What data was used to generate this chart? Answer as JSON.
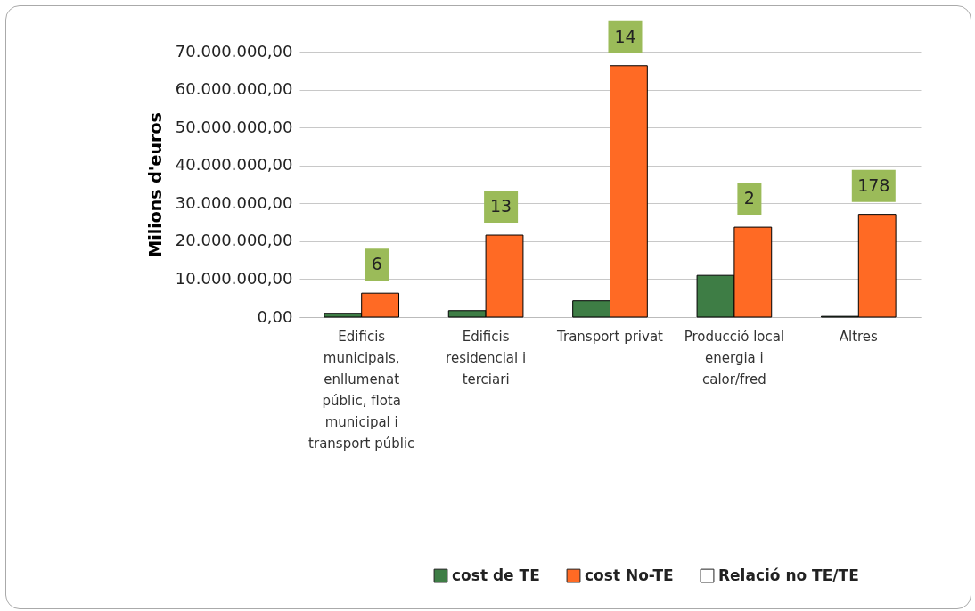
{
  "chart_data": {
    "type": "bar",
    "ylabel": "Milions d'euros",
    "categories": [
      "Edificis municipals, enllumenat públic, flota municipal i transport públic",
      "Edificis residencial i terciari",
      "Transport privat",
      "Producció local energia i calor/fred",
      "Altres"
    ],
    "series": [
      {
        "name": "cost de TE",
        "color": "#3e7d45",
        "values": [
          1000000,
          1700000,
          4300000,
          11000000,
          200000
        ]
      },
      {
        "name": "cost No-TE",
        "color": "#ff6a24",
        "values": [
          6300000,
          21600000,
          66300000,
          23700000,
          27100000
        ]
      },
      {
        "name": "Relació no TE/TE",
        "values": [
          null,
          null,
          null,
          null,
          null
        ]
      }
    ],
    "annotations": [
      {
        "text": "6",
        "x": "Edificis municipals, enllumenat públic, flota municipal i transport públic",
        "y": 6300000
      },
      {
        "text": "13",
        "x": "Edificis residencial i terciari",
        "y": 21600000
      },
      {
        "text": "14",
        "x": "Transport privat",
        "y": 66300000
      },
      {
        "text": "2",
        "x": "Producció local energia i calor/fred",
        "y": 23700000
      },
      {
        "text": "178",
        "x": "Altres",
        "y": 27100000
      }
    ],
    "ylim": [
      0,
      70000000
    ],
    "yticks": [
      {
        "value": 0,
        "label": "0,00"
      },
      {
        "value": 10000000,
        "label": "10.000.000,00"
      },
      {
        "value": 20000000,
        "label": "20.000.000,00"
      },
      {
        "value": 30000000,
        "label": "30.000.000,00"
      },
      {
        "value": 40000000,
        "label": "40.000.000,00"
      },
      {
        "value": 50000000,
        "label": "50.000.000,00"
      },
      {
        "value": 60000000,
        "label": "60.000.000,00"
      },
      {
        "value": 70000000,
        "label": "70.000.000,00"
      }
    ],
    "grid": "y",
    "legend": "bottom"
  }
}
